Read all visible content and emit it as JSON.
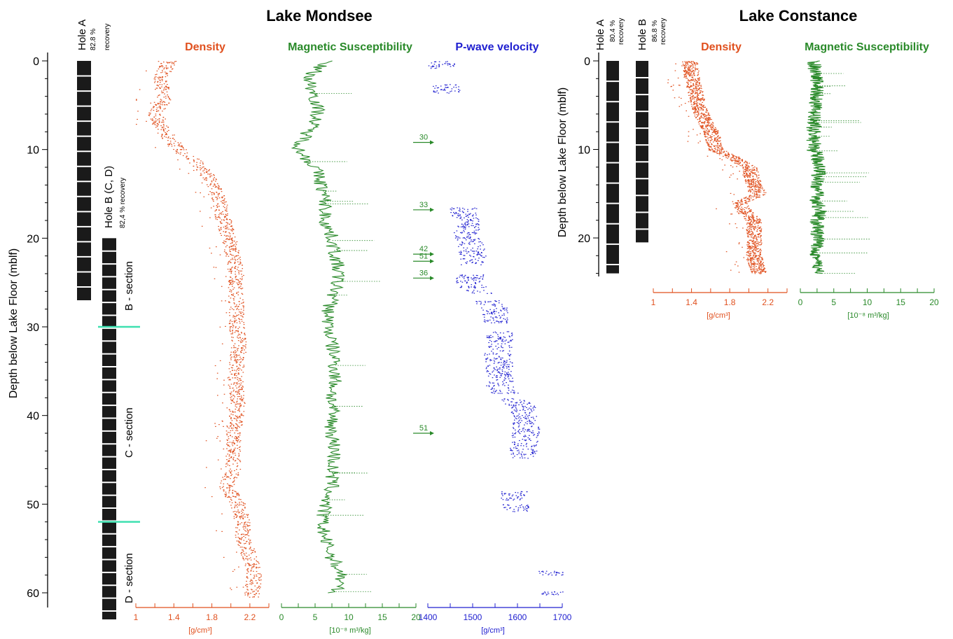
{
  "figure": {
    "panel_titles": [
      "Lake Mondsee",
      "Lake Constance"
    ],
    "depth_axis_label": "Depth below Lake Floor  (mblf)",
    "colors": {
      "density": "#e0501e",
      "magsus": "#2a8a2a",
      "pwave": "#2020d0",
      "core": "#1a1a1a",
      "divider": "#3ee0b0"
    }
  },
  "mondsee": {
    "title": "Lake Mondsee",
    "depth_ticks": [
      "0",
      "10",
      "20",
      "30",
      "40",
      "50",
      "60"
    ],
    "hole_a": {
      "label": "Hole A",
      "recovery": "82.8 %",
      "recovery_word": "recovery"
    },
    "hole_b": {
      "label": "Hole B (C, D)",
      "recovery": "82,4 % recovery"
    },
    "sections": [
      "B - section",
      "C - section",
      "D - section"
    ],
    "columns": {
      "density": {
        "title": "Density",
        "unit": "[g/cm³]",
        "ticks": [
          "1",
          "1.4",
          "1.8",
          "2.2"
        ]
      },
      "magsus": {
        "title": "Magnetic Susceptibility",
        "unit": "[10⁻⁸ m³/kg]",
        "ticks": [
          "0",
          "5",
          "10",
          "15",
          "20"
        ]
      },
      "pwave": {
        "title": "P-wave velocity",
        "unit": "[g/cm³]",
        "ticks": [
          "1400",
          "1500",
          "1600",
          "1700"
        ]
      }
    },
    "peak_annotations": [
      "30",
      "33",
      "42",
      "51",
      "36",
      "51"
    ]
  },
  "constance": {
    "title": "Lake Constance",
    "depth_ticks": [
      "0",
      "10",
      "20"
    ],
    "hole_a": {
      "label": "Hole A",
      "recovery": "80.4 %",
      "recovery_word": "recovery"
    },
    "hole_b": {
      "label": "Hole B",
      "recovery": "86.8 %",
      "recovery_word": "recovery"
    },
    "columns": {
      "density": {
        "title": "Density",
        "unit": "[g/cm³]",
        "ticks": [
          "1",
          "1.4",
          "1.8",
          "2.2"
        ]
      },
      "magsus": {
        "title": "Magnetic Susceptibility",
        "unit": "[10⁻⁸ m³/kg]",
        "ticks": [
          "0",
          "5",
          "10",
          "15",
          "20"
        ]
      }
    }
  },
  "chart_data": [
    {
      "type": "line",
      "title": "Lake Mondsee",
      "subtitle": "Density",
      "xlabel": "[g/cm³]",
      "ylabel": "Depth below Lake Floor  (mblf)",
      "xlim": [
        1,
        2.4
      ],
      "ylim": [
        62,
        0
      ],
      "series": [
        {
          "name": "Density",
          "depth": [
            0,
            2,
            4,
            6,
            8,
            10,
            12,
            14,
            16,
            18,
            20,
            22,
            24,
            26,
            28,
            30,
            32,
            34,
            36,
            38,
            40,
            42,
            44,
            46,
            48,
            50,
            52,
            54,
            56,
            58,
            60
          ],
          "values": [
            1.35,
            1.25,
            1.3,
            1.2,
            1.3,
            1.45,
            1.7,
            1.8,
            1.88,
            1.92,
            1.97,
            2.02,
            2.05,
            2.05,
            2.05,
            2.06,
            2.08,
            2.06,
            2.04,
            2.07,
            2.05,
            2.02,
            2.02,
            2.02,
            1.95,
            2.07,
            2.12,
            2.12,
            2.2,
            2.24,
            2.22
          ]
        }
      ]
    },
    {
      "type": "line",
      "title": "Lake Mondsee",
      "subtitle": "Magnetic Susceptibility",
      "xlabel": "[10⁻⁸ m³/kg]",
      "xlim": [
        0,
        20
      ],
      "ylim": [
        62,
        0
      ],
      "series": [
        {
          "name": "Magnetic Susceptibility",
          "depth": [
            0,
            2,
            4,
            6,
            8,
            10,
            12,
            14,
            16,
            18,
            20,
            22,
            24,
            26,
            28,
            30,
            32,
            34,
            36,
            38,
            40,
            42,
            44,
            46,
            48,
            50,
            52,
            54,
            56,
            58,
            60
          ],
          "values": [
            6.5,
            4,
            5,
            5.5,
            4,
            2.5,
            5,
            6,
            6.5,
            6.5,
            7.5,
            8,
            8.5,
            8,
            7,
            7,
            7.5,
            8,
            8,
            7.5,
            7.5,
            7.5,
            8,
            7.5,
            7.5,
            6.5,
            6,
            6.5,
            7.5,
            9,
            8
          ]
        }
      ]
    },
    {
      "type": "scatter",
      "title": "Lake Mondsee",
      "subtitle": "P-wave velocity",
      "xlabel": "[g/cm³]",
      "xlim": [
        1400,
        1700
      ],
      "ylim": [
        62,
        0
      ],
      "series": [
        {
          "name": "P-wave velocity",
          "depth": [
            0.5,
            3,
            17,
            20,
            22,
            25,
            28,
            31,
            33,
            35,
            37,
            39,
            41,
            43,
            44.5,
            49,
            50.5,
            58,
            60
          ],
          "values": [
            1430,
            1440,
            1480,
            1490,
            1500,
            1490,
            1550,
            1560,
            1555,
            1560,
            1560,
            1610,
            1620,
            1615,
            1610,
            1590,
            1600,
            1680,
            1680
          ]
        }
      ]
    },
    {
      "type": "line",
      "title": "Lake Constance",
      "subtitle": "Density",
      "xlabel": "[g/cm³]",
      "ylabel": "Depth below Lake Floor  (mblf)",
      "xlim": [
        1,
        2.4
      ],
      "ylim": [
        24.5,
        0
      ],
      "series": [
        {
          "name": "Density",
          "depth": [
            0,
            2,
            4,
            6,
            8,
            10,
            11,
            12,
            14,
            15,
            16,
            17,
            18,
            20,
            22,
            24
          ],
          "values": [
            1.38,
            1.4,
            1.45,
            1.5,
            1.6,
            1.65,
            1.85,
            2.0,
            2.05,
            2.1,
            1.9,
            1.95,
            2.05,
            2.05,
            2.05,
            2.1
          ]
        }
      ]
    },
    {
      "type": "line",
      "title": "Lake Constance",
      "subtitle": "Magnetic Susceptibility",
      "xlabel": "[10⁻⁸ m³/kg]",
      "xlim": [
        0,
        20
      ],
      "ylim": [
        24.5,
        0
      ],
      "series": [
        {
          "name": "Magnetic Susceptibility",
          "depth": [
            0,
            2,
            4,
            6,
            8,
            10,
            11,
            12,
            14,
            16,
            17,
            18,
            20,
            22,
            24
          ],
          "values": [
            2,
            2.5,
            2.5,
            2,
            2,
            2,
            2.5,
            3,
            2.5,
            2.5,
            3,
            2.5,
            2.5,
            2.5,
            2.5
          ]
        }
      ]
    }
  ]
}
